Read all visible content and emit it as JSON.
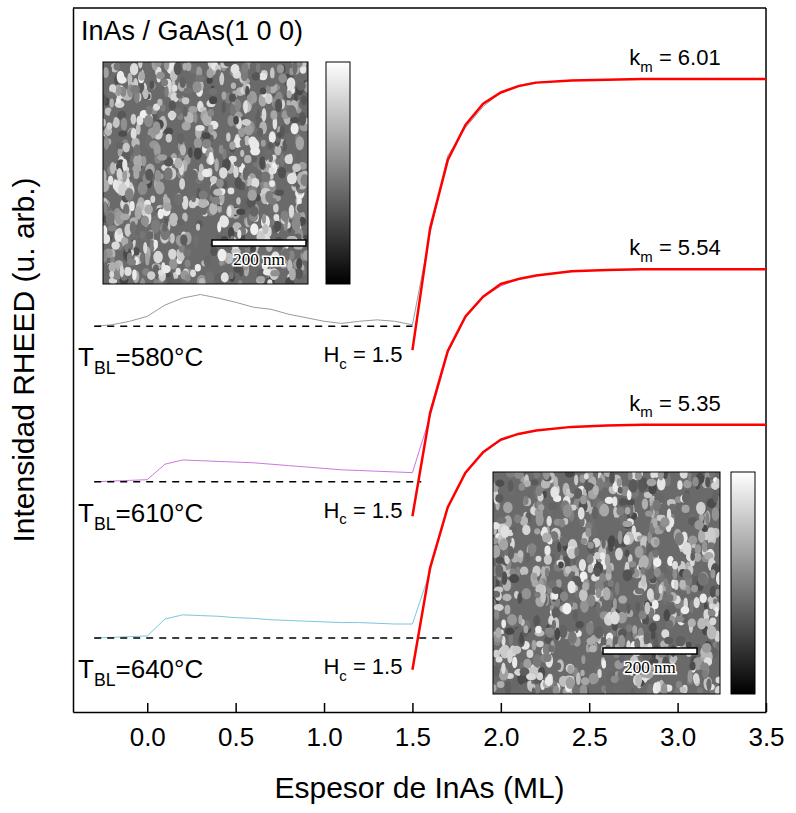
{
  "chart_data": {
    "type": "line",
    "title": "InAs / GaAs(1 0 0)",
    "x_label": "Espesor de InAs (ML)",
    "y_label": "Intensidad RHEED (u. arb.)",
    "xlim": [
      -0.42,
      3.5
    ],
    "xticks": [
      {
        "value": 0,
        "label": "0.0"
      },
      0.5,
      {
        "value": 1,
        "label": "1.0"
      },
      1.5,
      {
        "value": 2,
        "label": "2.0"
      },
      2.5,
      {
        "value": 3,
        "label": "3.0"
      },
      3.5
    ],
    "ylim": [
      0,
      10
    ],
    "tick_labels": "x",
    "series": [
      {
        "color": "#9a9a9a",
        "line_style": "solid",
        "x": [
          -0.3,
          -0.2,
          -0.1,
          0.0,
          0.1,
          0.2,
          0.3,
          0.4,
          0.5,
          0.6,
          0.7,
          0.8,
          0.9,
          1.0,
          1.1,
          1.2,
          1.3,
          1.4,
          1.5,
          1.6,
          1.7,
          1.8,
          1.9,
          2.0,
          2.1,
          2.2
        ],
        "values": [
          5.48,
          5.5,
          5.55,
          5.62,
          5.78,
          5.88,
          5.93,
          5.88,
          5.82,
          5.75,
          5.72,
          5.65,
          5.6,
          5.55,
          5.52,
          5.55,
          5.57,
          5.55,
          5.5,
          6.8,
          7.9,
          8.3,
          8.6,
          8.8,
          8.9,
          8.95
        ]
      },
      {
        "color": "#000000",
        "line_style": "dashed",
        "x": [
          -0.3,
          1.5
        ],
        "values": [
          5.48,
          5.48
        ]
      },
      {
        "color": "#ff0000",
        "line_style": "solid",
        "x": [
          1.5,
          1.6,
          1.7,
          1.8,
          1.9,
          2.0,
          2.1,
          2.2,
          2.4,
          2.6,
          2.8,
          3.0,
          3.5
        ],
        "values": [
          5.14,
          6.87,
          7.84,
          8.34,
          8.64,
          8.8,
          8.89,
          8.94,
          8.97,
          8.98,
          8.99,
          8.99,
          8.99
        ]
      },
      {
        "color": "#cc77dd",
        "line_style": "solid",
        "x": [
          -0.3,
          -0.2,
          -0.1,
          0.0,
          0.1,
          0.2,
          0.3,
          0.4,
          0.5,
          0.6,
          0.7,
          0.8,
          0.9,
          1.0,
          1.1,
          1.2,
          1.3,
          1.4,
          1.5,
          1.6,
          1.7,
          1.8,
          1.9,
          2.0,
          2.1,
          2.2
        ],
        "values": [
          3.27,
          3.28,
          3.29,
          3.3,
          3.52,
          3.58,
          3.57,
          3.56,
          3.55,
          3.54,
          3.52,
          3.5,
          3.48,
          3.46,
          3.44,
          3.43,
          3.42,
          3.41,
          3.4,
          4.2,
          5.1,
          5.6,
          5.9,
          6.05,
          6.15,
          6.2
        ]
      },
      {
        "color": "#000000",
        "line_style": "dashed",
        "x": [
          -0.3,
          1.55
        ],
        "values": [
          3.27,
          3.27
        ]
      },
      {
        "color": "#ff0000",
        "line_style": "solid",
        "x": [
          1.5,
          1.6,
          1.7,
          1.8,
          1.9,
          2.0,
          2.1,
          2.2,
          2.4,
          2.6,
          2.8,
          3.0,
          3.5
        ],
        "values": [
          2.78,
          4.25,
          5.13,
          5.62,
          5.9,
          6.08,
          6.15,
          6.2,
          6.26,
          6.28,
          6.29,
          6.29,
          6.29
        ]
      },
      {
        "color": "#77c8e0",
        "line_style": "solid",
        "x": [
          -0.3,
          -0.2,
          -0.1,
          0.0,
          0.1,
          0.2,
          0.3,
          0.4,
          0.5,
          0.6,
          0.7,
          0.8,
          0.9,
          1.0,
          1.1,
          1.2,
          1.3,
          1.4,
          1.5,
          1.6,
          1.7,
          1.8,
          1.9,
          2.0,
          2.1,
          2.2
        ],
        "values": [
          1.05,
          1.06,
          1.07,
          1.08,
          1.32,
          1.38,
          1.37,
          1.36,
          1.34,
          1.33,
          1.31,
          1.3,
          1.29,
          1.28,
          1.27,
          1.27,
          1.26,
          1.25,
          1.25,
          2.0,
          2.9,
          3.4,
          3.7,
          3.85,
          3.95,
          4.0
        ]
      },
      {
        "color": "#000000",
        "line_style": "dashed",
        "x": [
          -0.3,
          1.75
        ],
        "values": [
          1.05,
          1.05
        ]
      },
      {
        "color": "#ff0000",
        "line_style": "solid",
        "x": [
          1.5,
          1.6,
          1.7,
          1.8,
          1.9,
          2.0,
          2.1,
          2.2,
          2.4,
          2.6,
          2.8,
          3.0,
          3.5
        ],
        "values": [
          0.6,
          2.05,
          2.91,
          3.4,
          3.69,
          3.87,
          3.95,
          4.0,
          4.05,
          4.07,
          4.08,
          4.08,
          4.08
        ]
      }
    ],
    "annotations": [
      {
        "t_bl": {
          "base": "T",
          "sub": "BL",
          "text": "=580°C"
        },
        "h_c": {
          "base": "H",
          "sub": "c",
          "text": " = 1.5"
        },
        "k_m": {
          "base": "k",
          "sub": "m",
          "text": " = 6.01"
        }
      },
      {
        "t_bl": {
          "base": "T",
          "sub": "BL",
          "text": "=610°C"
        },
        "h_c": {
          "base": "H",
          "sub": "c",
          "text": " = 1.5"
        },
        "k_m": {
          "base": "k",
          "sub": "m",
          "text": " = 5.54"
        }
      },
      {
        "t_bl": {
          "base": "T",
          "sub": "BL",
          "text": "=640°C"
        },
        "h_c": {
          "base": "H",
          "sub": "c",
          "text": " = 1.5"
        },
        "k_m": {
          "base": "k",
          "sub": "m",
          "text": " = 5.35"
        }
      }
    ],
    "insets": [
      {
        "scale_bar": "200 nm"
      },
      {
        "scale_bar": "200 nm"
      }
    ]
  }
}
